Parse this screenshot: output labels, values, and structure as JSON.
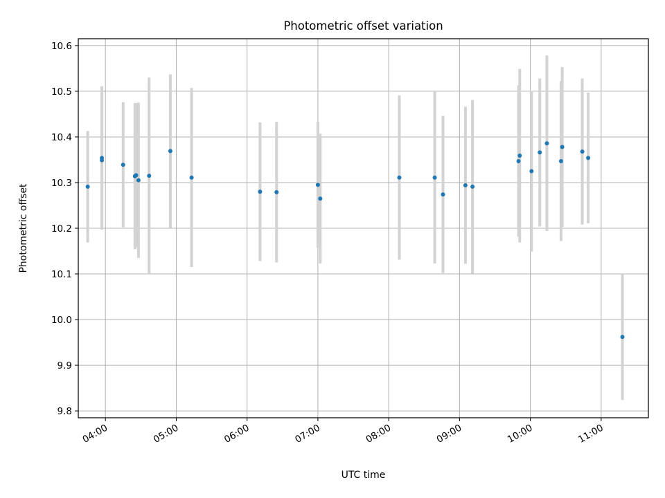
{
  "chart_data": {
    "type": "scatter",
    "title": "Photometric offset variation",
    "xlabel": "UTC time",
    "ylabel": "Photometric offset",
    "xlim": [
      "03:37",
      "11:40"
    ],
    "ylim": [
      9.785,
      10.615
    ],
    "grid": true,
    "x_ticks": [
      "04:00",
      "05:00",
      "06:00",
      "07:00",
      "08:00",
      "09:00",
      "10:00",
      "11:00"
    ],
    "y_ticks": [
      "9.8",
      "9.9",
      "10.0",
      "10.1",
      "10.2",
      "10.3",
      "10.4",
      "10.5",
      "10.6"
    ],
    "y_tick_values": [
      9.8,
      9.9,
      10.0,
      10.1,
      10.2,
      10.3,
      10.4,
      10.5,
      10.6
    ],
    "errorbar_color": "#d3d3d3",
    "marker_color": "#1f77b4",
    "points": [
      {
        "x": "03:45",
        "y": 10.291,
        "err": 0.122
      },
      {
        "x": "03:57",
        "y": 10.349,
        "err": 0.152
      },
      {
        "x": "03:57",
        "y": 10.354,
        "err": 0.157
      },
      {
        "x": "04:15",
        "y": 10.339,
        "err": 0.137
      },
      {
        "x": "04:25",
        "y": 10.314,
        "err": 0.16
      },
      {
        "x": "04:26",
        "y": 10.316,
        "err": 0.158
      },
      {
        "x": "04:28",
        "y": 10.305,
        "err": 0.17
      },
      {
        "x": "04:37",
        "y": 10.315,
        "err": 0.215
      },
      {
        "x": "04:55",
        "y": 10.369,
        "err": 0.168
      },
      {
        "x": "05:13",
        "y": 10.311,
        "err": 0.196
      },
      {
        "x": "06:11",
        "y": 10.28,
        "err": 0.152
      },
      {
        "x": "06:25",
        "y": 10.279,
        "err": 0.154
      },
      {
        "x": "07:00",
        "y": 10.295,
        "err": 0.138
      },
      {
        "x": "07:02",
        "y": 10.265,
        "err": 0.142
      },
      {
        "x": "08:09",
        "y": 10.311,
        "err": 0.18
      },
      {
        "x": "08:39",
        "y": 10.311,
        "err": 0.188
      },
      {
        "x": "08:46",
        "y": 10.274,
        "err": 0.172
      },
      {
        "x": "09:05",
        "y": 10.294,
        "err": 0.172
      },
      {
        "x": "09:11",
        "y": 10.291,
        "err": 0.19
      },
      {
        "x": "09:50",
        "y": 10.347,
        "err": 0.166
      },
      {
        "x": "09:51",
        "y": 10.359,
        "err": 0.19
      },
      {
        "x": "10:01",
        "y": 10.325,
        "err": 0.176
      },
      {
        "x": "10:08",
        "y": 10.366,
        "err": 0.162
      },
      {
        "x": "10:14",
        "y": 10.386,
        "err": 0.192
      },
      {
        "x": "10:26",
        "y": 10.347,
        "err": 0.175
      },
      {
        "x": "10:27",
        "y": 10.378,
        "err": 0.175
      },
      {
        "x": "10:44",
        "y": 10.368,
        "err": 0.16
      },
      {
        "x": "10:49",
        "y": 10.354,
        "err": 0.143
      },
      {
        "x": "11:18",
        "y": 9.962,
        "err": 0.138
      }
    ]
  }
}
